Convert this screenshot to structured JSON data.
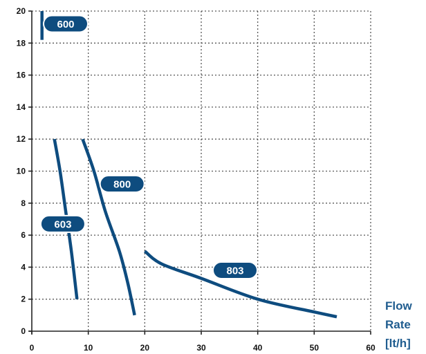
{
  "chart_data": {
    "type": "line",
    "xlabel": [
      "Flow",
      "Rate",
      "[lt/h]"
    ],
    "ylabel": "",
    "title": "",
    "xlim": [
      0,
      60
    ],
    "ylim": [
      0,
      20
    ],
    "x_ticks": [
      0,
      10,
      20,
      30,
      40,
      50,
      60
    ],
    "y_ticks": [
      0,
      2,
      4,
      6,
      8,
      10,
      12,
      14,
      16,
      18,
      20
    ],
    "grid": true,
    "line_color": "#0e4c7f",
    "label_text_color": "#1f5c8f",
    "series": [
      {
        "name": "600",
        "points": [
          [
            1.8,
            18.2
          ],
          [
            1.8,
            20
          ]
        ]
      },
      {
        "name": "603",
        "points": [
          [
            4,
            12
          ],
          [
            5,
            10
          ],
          [
            6,
            7.5
          ],
          [
            7,
            5
          ],
          [
            8,
            2
          ]
        ]
      },
      {
        "name": "800",
        "points": [
          [
            9,
            12
          ],
          [
            11,
            10
          ],
          [
            13,
            7.5
          ],
          [
            15.5,
            5
          ],
          [
            17,
            3
          ],
          [
            18.2,
            1
          ]
        ]
      },
      {
        "name": "803",
        "points": [
          [
            20,
            5
          ],
          [
            23,
            4.2
          ],
          [
            30,
            3.3
          ],
          [
            40,
            2
          ],
          [
            50,
            1.2
          ],
          [
            54,
            0.9
          ]
        ]
      }
    ],
    "annotations": [
      {
        "text": "600",
        "x": 6,
        "y": 19.2
      },
      {
        "text": "800",
        "x": 16,
        "y": 9.2
      },
      {
        "text": "603",
        "x": 5.5,
        "y": 6.7
      },
      {
        "text": "803",
        "x": 36,
        "y": 3.8
      }
    ]
  }
}
